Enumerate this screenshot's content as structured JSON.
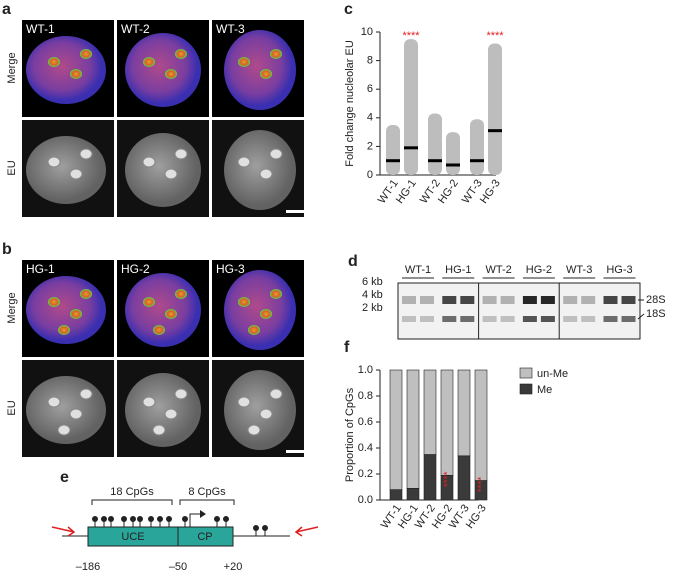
{
  "panels": {
    "a": {
      "letter": "a",
      "images": [
        "WT-1",
        "WT-2",
        "WT-3"
      ],
      "rows": [
        "Merge",
        "EU"
      ]
    },
    "b": {
      "letter": "b",
      "images": [
        "HG-1",
        "HG-2",
        "HG-3"
      ],
      "rows": [
        "Merge",
        "EU"
      ]
    },
    "d": {
      "letter": "d",
      "lanes": [
        "WT-1",
        "HG-1",
        "WT-2",
        "HG-2",
        "WT-3",
        "HG-3"
      ],
      "sizes": [
        "6 kb",
        "4 kb",
        "2 kb"
      ],
      "bands": [
        "28S",
        "18S"
      ]
    },
    "e": {
      "letter": "e",
      "cpg_labels": [
        "18 CpGs",
        "8 CpGs"
      ],
      "regions": [
        "UCE",
        "CP"
      ],
      "positions": [
        "–186",
        "–50",
        "+20"
      ]
    }
  },
  "chart_data": [
    {
      "type": "dot",
      "letter": "c",
      "ylabel": "Fold change nucleolar EU",
      "categories": [
        "WT-1",
        "HG-1",
        "WT-2",
        "HG-2",
        "WT-3",
        "HG-3"
      ],
      "values": [
        1.0,
        1.9,
        1.0,
        0.7,
        1.0,
        3.1
      ],
      "max": [
        3.5,
        9.5,
        4.3,
        3.0,
        3.9,
        9.2
      ],
      "color": "#bdbdbd",
      "annotations": [
        {
          "index": 1,
          "text": "****"
        },
        {
          "index": 5,
          "text": "****"
        }
      ],
      "ylim": [
        0,
        10
      ],
      "yticks": [
        0,
        2,
        4,
        6,
        8,
        10
      ]
    },
    {
      "type": "bar",
      "letter": "f",
      "ylabel": "Proportion of CpGs",
      "categories": [
        "WT-1",
        "HG-1",
        "WT-2",
        "HG-2",
        "WT-3",
        "HG-3"
      ],
      "series": [
        {
          "name": "Me",
          "color": "#3a3a3a",
          "values": [
            0.08,
            0.09,
            0.35,
            0.19,
            0.34,
            0.15
          ]
        },
        {
          "name": "un-Me",
          "color": "#bfbfbf",
          "values": [
            0.92,
            0.91,
            0.65,
            0.81,
            0.66,
            0.85
          ]
        }
      ],
      "annotations": [
        {
          "index": 3,
          "text": "****"
        },
        {
          "index": 5,
          "text": "****"
        }
      ],
      "ylim": [
        0,
        1
      ],
      "yticks": [
        {
          "value": 0,
          "label": "0.0"
        },
        0.2,
        0.4,
        0.6,
        0.8,
        {
          "value": 1,
          "label": "1.0"
        }
      ]
    }
  ]
}
